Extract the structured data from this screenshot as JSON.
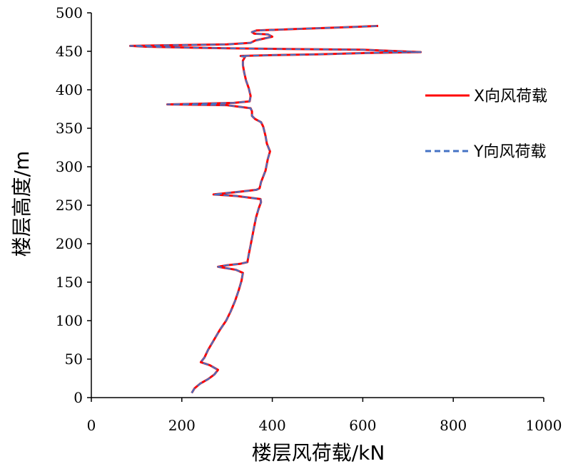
{
  "chart_data": {
    "type": "line",
    "xlabel": "楼层风荷载/kN",
    "ylabel": "楼层高度/m",
    "xlim": [
      0,
      1000
    ],
    "ylim": [
      0,
      500
    ],
    "xticks": [
      0,
      200,
      400,
      600,
      800,
      1000
    ],
    "yticks": [
      0,
      50,
      100,
      150,
      200,
      250,
      300,
      350,
      400,
      450,
      500
    ],
    "grid": false,
    "legend_position": "right",
    "series": [
      {
        "name": "X向风荷载",
        "color": "#ff0000",
        "dash": "solid",
        "points": [
          [
            222,
            6
          ],
          [
            228,
            12
          ],
          [
            240,
            18
          ],
          [
            258,
            24
          ],
          [
            272,
            30
          ],
          [
            280,
            36
          ],
          [
            262,
            42
          ],
          [
            242,
            46
          ],
          [
            250,
            52
          ],
          [
            258,
            62
          ],
          [
            270,
            74
          ],
          [
            284,
            88
          ],
          [
            298,
            100
          ],
          [
            308,
            112
          ],
          [
            318,
            126
          ],
          [
            326,
            140
          ],
          [
            332,
            152
          ],
          [
            335,
            162
          ],
          [
            320,
            166
          ],
          [
            280,
            170
          ],
          [
            300,
            172
          ],
          [
            330,
            174
          ],
          [
            345,
            176
          ],
          [
            348,
            186
          ],
          [
            352,
            198
          ],
          [
            356,
            210
          ],
          [
            360,
            222
          ],
          [
            364,
            234
          ],
          [
            370,
            246
          ],
          [
            375,
            254
          ],
          [
            374,
            258
          ],
          [
            320,
            262
          ],
          [
            270,
            264
          ],
          [
            320,
            267
          ],
          [
            365,
            270
          ],
          [
            372,
            272
          ],
          [
            375,
            280
          ],
          [
            385,
            295
          ],
          [
            390,
            310
          ],
          [
            395,
            320
          ],
          [
            388,
            330
          ],
          [
            385,
            340
          ],
          [
            380,
            352
          ],
          [
            375,
            358
          ],
          [
            362,
            362
          ],
          [
            355,
            366
          ],
          [
            355,
            372
          ],
          [
            352,
            376
          ],
          [
            300,
            380
          ],
          [
            168,
            381
          ],
          [
            250,
            382
          ],
          [
            315,
            383
          ],
          [
            350,
            385
          ],
          [
            352,
            392
          ],
          [
            348,
            402
          ],
          [
            342,
            412
          ],
          [
            338,
            422
          ],
          [
            335,
            432
          ],
          [
            335,
            438
          ],
          [
            340,
            443
          ],
          [
            330,
            444
          ],
          [
            400,
            445
          ],
          [
            500,
            446
          ],
          [
            620,
            448
          ],
          [
            728,
            449
          ],
          [
            600,
            452
          ],
          [
            430,
            453
          ],
          [
            300,
            454
          ],
          [
            200,
            455
          ],
          [
            120,
            456
          ],
          [
            86,
            457
          ],
          [
            180,
            458
          ],
          [
            300,
            459
          ],
          [
            352,
            461
          ],
          [
            362,
            464
          ],
          [
            400,
            469
          ],
          [
            390,
            472
          ],
          [
            360,
            473
          ],
          [
            355,
            475
          ],
          [
            365,
            477
          ],
          [
            450,
            479
          ],
          [
            550,
            481
          ],
          [
            634,
            483
          ]
        ]
      },
      {
        "name": "Y向风荷载",
        "color": "#4472c4",
        "dash": "dashed",
        "points": [
          [
            222,
            6
          ],
          [
            228,
            12
          ],
          [
            240,
            18
          ],
          [
            258,
            24
          ],
          [
            272,
            30
          ],
          [
            280,
            36
          ],
          [
            262,
            42
          ],
          [
            242,
            46
          ],
          [
            250,
            52
          ],
          [
            258,
            62
          ],
          [
            270,
            74
          ],
          [
            284,
            88
          ],
          [
            298,
            100
          ],
          [
            308,
            112
          ],
          [
            318,
            126
          ],
          [
            326,
            140
          ],
          [
            332,
            152
          ],
          [
            335,
            162
          ],
          [
            320,
            166
          ],
          [
            280,
            170
          ],
          [
            300,
            172
          ],
          [
            330,
            174
          ],
          [
            345,
            176
          ],
          [
            348,
            186
          ],
          [
            352,
            198
          ],
          [
            356,
            210
          ],
          [
            360,
            222
          ],
          [
            364,
            234
          ],
          [
            370,
            246
          ],
          [
            375,
            254
          ],
          [
            374,
            258
          ],
          [
            320,
            262
          ],
          [
            270,
            264
          ],
          [
            320,
            267
          ],
          [
            365,
            270
          ],
          [
            372,
            272
          ],
          [
            375,
            280
          ],
          [
            385,
            295
          ],
          [
            390,
            310
          ],
          [
            395,
            320
          ],
          [
            388,
            330
          ],
          [
            385,
            340
          ],
          [
            380,
            352
          ],
          [
            375,
            358
          ],
          [
            362,
            362
          ],
          [
            355,
            366
          ],
          [
            355,
            372
          ],
          [
            352,
            376
          ],
          [
            300,
            380
          ],
          [
            168,
            381
          ],
          [
            250,
            382
          ],
          [
            315,
            383
          ],
          [
            350,
            385
          ],
          [
            352,
            392
          ],
          [
            348,
            402
          ],
          [
            342,
            412
          ],
          [
            338,
            422
          ],
          [
            335,
            432
          ],
          [
            335,
            438
          ],
          [
            340,
            443
          ],
          [
            330,
            444
          ],
          [
            400,
            445
          ],
          [
            500,
            446
          ],
          [
            620,
            448
          ],
          [
            728,
            449
          ],
          [
            600,
            452
          ],
          [
            430,
            453
          ],
          [
            300,
            454
          ],
          [
            200,
            455
          ],
          [
            120,
            456
          ],
          [
            86,
            457
          ],
          [
            180,
            458
          ],
          [
            300,
            459
          ],
          [
            352,
            461
          ],
          [
            362,
            464
          ],
          [
            400,
            469
          ],
          [
            390,
            472
          ],
          [
            360,
            473
          ],
          [
            355,
            475
          ],
          [
            365,
            477
          ],
          [
            450,
            479
          ],
          [
            550,
            481
          ],
          [
            634,
            483
          ]
        ]
      }
    ]
  }
}
